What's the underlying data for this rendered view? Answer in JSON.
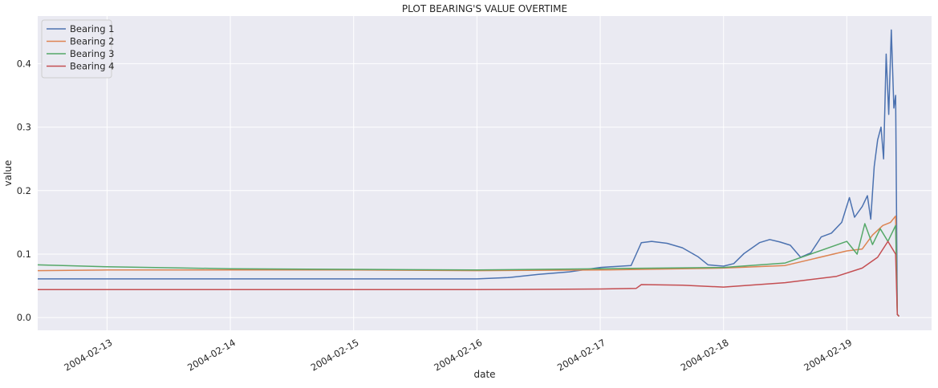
{
  "chart_data": {
    "type": "line",
    "title": "PLOT BEARING'S VALUE OVERTIME",
    "xlabel": "date",
    "ylabel": "value",
    "xlim": [
      "2004-02-12 10:30",
      "2004-02-19 16:30"
    ],
    "ylim": [
      -0.02,
      0.475
    ],
    "x_ticks": [
      "2004-02-13",
      "2004-02-14",
      "2004-02-15",
      "2004-02-16",
      "2004-02-17",
      "2004-02-18",
      "2004-02-19"
    ],
    "y_ticks": [
      0.0,
      0.1,
      0.2,
      0.3,
      0.4
    ],
    "y_tick_labels": [
      "0.0",
      "0.1",
      "0.2",
      "0.3",
      "0.4"
    ],
    "grid": true,
    "legend_position": "top-left",
    "background": "#eaeaf2",
    "grid_color": "#ffffff",
    "series": [
      {
        "name": "Bearing 1",
        "color": "#4c72b0",
        "points": [
          [
            "2004-02-12 10:30",
            0.061
          ],
          [
            "2004-02-13 00:00",
            0.061
          ],
          [
            "2004-02-14 00:00",
            0.061
          ],
          [
            "2004-02-15 00:00",
            0.061
          ],
          [
            "2004-02-16 00:00",
            0.061
          ],
          [
            "2004-02-16 06:00",
            0.063
          ],
          [
            "2004-02-16 12:00",
            0.068
          ],
          [
            "2004-02-16 18:00",
            0.072
          ],
          [
            "2004-02-17 00:00",
            0.079
          ],
          [
            "2004-02-17 06:00",
            0.082
          ],
          [
            "2004-02-17 07:00",
            0.1
          ],
          [
            "2004-02-17 08:00",
            0.118
          ],
          [
            "2004-02-17 10:00",
            0.12
          ],
          [
            "2004-02-17 13:00",
            0.117
          ],
          [
            "2004-02-17 16:00",
            0.11
          ],
          [
            "2004-02-17 19:00",
            0.096
          ],
          [
            "2004-02-17 21:00",
            0.083
          ],
          [
            "2004-02-18 00:00",
            0.081
          ],
          [
            "2004-02-18 02:00",
            0.085
          ],
          [
            "2004-02-18 04:00",
            0.101
          ],
          [
            "2004-02-18 07:00",
            0.118
          ],
          [
            "2004-02-18 09:00",
            0.123
          ],
          [
            "2004-02-18 11:00",
            0.119
          ],
          [
            "2004-02-18 13:00",
            0.114
          ],
          [
            "2004-02-18 15:00",
            0.095
          ],
          [
            "2004-02-18 17:00",
            0.102
          ],
          [
            "2004-02-18 19:00",
            0.127
          ],
          [
            "2004-02-18 21:00",
            0.133
          ],
          [
            "2004-02-18 23:00",
            0.15
          ],
          [
            "2004-02-19 00:30",
            0.189
          ],
          [
            "2004-02-19 01:30",
            0.158
          ],
          [
            "2004-02-19 03:00",
            0.175
          ],
          [
            "2004-02-19 04:00",
            0.192
          ],
          [
            "2004-02-19 04:40",
            0.155
          ],
          [
            "2004-02-19 05:20",
            0.238
          ],
          [
            "2004-02-19 06:00",
            0.28
          ],
          [
            "2004-02-19 06:40",
            0.3
          ],
          [
            "2004-02-19 07:10",
            0.25
          ],
          [
            "2004-02-19 07:40",
            0.415
          ],
          [
            "2004-02-19 08:10",
            0.32
          ],
          [
            "2004-02-19 08:40",
            0.453
          ],
          [
            "2004-02-19 09:10",
            0.33
          ],
          [
            "2004-02-19 09:30",
            0.35
          ],
          [
            "2004-02-19 09:50",
            0.005
          ],
          [
            "2004-02-19 10:10",
            0.002
          ]
        ]
      },
      {
        "name": "Bearing 2",
        "color": "#dd8452",
        "points": [
          [
            "2004-02-12 10:30",
            0.074
          ],
          [
            "2004-02-13 00:00",
            0.075
          ],
          [
            "2004-02-14 00:00",
            0.075
          ],
          [
            "2004-02-15 00:00",
            0.075
          ],
          [
            "2004-02-16 00:00",
            0.074
          ],
          [
            "2004-02-17 00:00",
            0.075
          ],
          [
            "2004-02-18 00:00",
            0.078
          ],
          [
            "2004-02-18 12:00",
            0.082
          ],
          [
            "2004-02-19 00:00",
            0.105
          ],
          [
            "2004-02-19 03:00",
            0.108
          ],
          [
            "2004-02-19 05:00",
            0.13
          ],
          [
            "2004-02-19 07:00",
            0.145
          ],
          [
            "2004-02-19 08:30",
            0.15
          ],
          [
            "2004-02-19 09:30",
            0.16
          ],
          [
            "2004-02-19 09:50",
            0.005
          ],
          [
            "2004-02-19 10:10",
            0.002
          ]
        ]
      },
      {
        "name": "Bearing 3",
        "color": "#55a868",
        "points": [
          [
            "2004-02-12 10:30",
            0.083
          ],
          [
            "2004-02-13 00:00",
            0.08
          ],
          [
            "2004-02-14 00:00",
            0.077
          ],
          [
            "2004-02-15 00:00",
            0.076
          ],
          [
            "2004-02-16 00:00",
            0.075
          ],
          [
            "2004-02-17 00:00",
            0.077
          ],
          [
            "2004-02-18 00:00",
            0.079
          ],
          [
            "2004-02-18 12:00",
            0.086
          ],
          [
            "2004-02-19 00:00",
            0.12
          ],
          [
            "2004-02-19 02:00",
            0.1
          ],
          [
            "2004-02-19 03:30",
            0.148
          ],
          [
            "2004-02-19 05:00",
            0.115
          ],
          [
            "2004-02-19 06:30",
            0.14
          ],
          [
            "2004-02-19 08:00",
            0.12
          ],
          [
            "2004-02-19 09:30",
            0.145
          ],
          [
            "2004-02-19 09:50",
            0.005
          ],
          [
            "2004-02-19 10:10",
            0.002
          ]
        ]
      },
      {
        "name": "Bearing 4",
        "color": "#c44e52",
        "points": [
          [
            "2004-02-12 10:30",
            0.044
          ],
          [
            "2004-02-13 00:00",
            0.044
          ],
          [
            "2004-02-14 00:00",
            0.044
          ],
          [
            "2004-02-15 00:00",
            0.044
          ],
          [
            "2004-02-16 00:00",
            0.044
          ],
          [
            "2004-02-17 00:00",
            0.045
          ],
          [
            "2004-02-17 07:00",
            0.046
          ],
          [
            "2004-02-17 08:00",
            0.052
          ],
          [
            "2004-02-17 16:00",
            0.051
          ],
          [
            "2004-02-18 00:00",
            0.048
          ],
          [
            "2004-02-18 12:00",
            0.055
          ],
          [
            "2004-02-18 22:00",
            0.065
          ],
          [
            "2004-02-19 03:00",
            0.078
          ],
          [
            "2004-02-19 06:00",
            0.095
          ],
          [
            "2004-02-19 08:00",
            0.12
          ],
          [
            "2004-02-19 09:30",
            0.1
          ],
          [
            "2004-02-19 09:50",
            0.005
          ],
          [
            "2004-02-19 10:10",
            0.002
          ]
        ]
      }
    ]
  }
}
